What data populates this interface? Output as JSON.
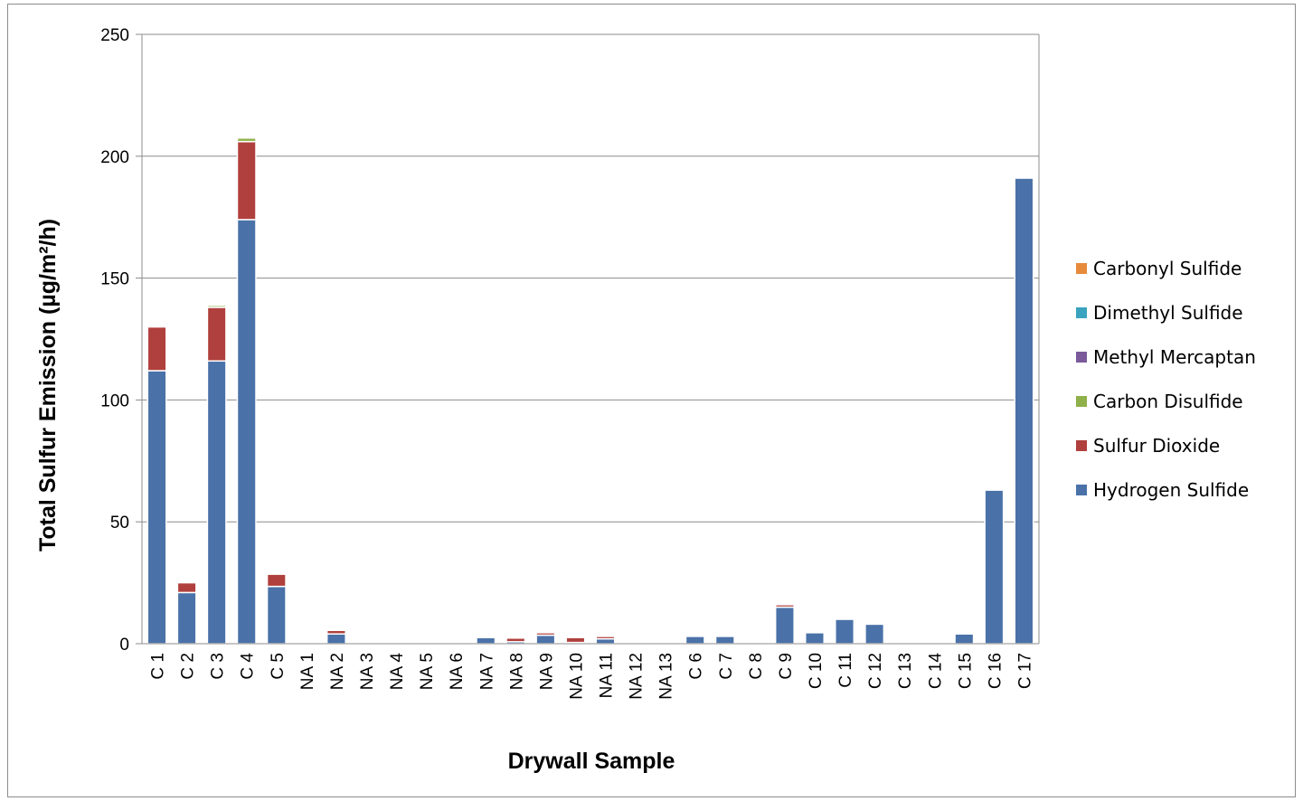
{
  "chart_data": {
    "type": "bar",
    "stacked": true,
    "title": "",
    "xlabel": "Drywall Sample",
    "ylabel": "Total Sulfur Emission (µg/m²/h)",
    "ylim": [
      0,
      250
    ],
    "yticks": [
      "0",
      "50",
      "100",
      "150",
      "200",
      "250"
    ],
    "grid": true,
    "legend_position": "right",
    "categories": [
      "C 1",
      "C 2",
      "C 3",
      "C 4",
      "C 5",
      "NA 1",
      "NA 2",
      "NA 3",
      "NA 4",
      "NA 5",
      "NA 6",
      "NA 7",
      "NA 8",
      "NA 9",
      "NA 10",
      "NA 11",
      "NA 12",
      "NA 13",
      "C 6",
      "C 7",
      "C 8",
      "C 9",
      "C 10",
      "C 11",
      "C 12",
      "C 13",
      "C 14",
      "C 15",
      "C 16",
      "C 17"
    ],
    "series": [
      {
        "name": "Hydrogen Sulfide",
        "color": "#4a72a8",
        "values": [
          112,
          21,
          116,
          174,
          23.5,
          0,
          4,
          0.3,
          0,
          0.3,
          0,
          2.5,
          0.8,
          3.5,
          0.5,
          2,
          0.3,
          0,
          3,
          3,
          0,
          15,
          4.5,
          10,
          8,
          0,
          0.5,
          4,
          63,
          191
        ]
      },
      {
        "name": "Sulfur Dioxide",
        "color": "#b0403d",
        "values": [
          18,
          4,
          22,
          32,
          5,
          0,
          1.5,
          0,
          0,
          0.3,
          0,
          0,
          1.5,
          1,
          2,
          1,
          0,
          0,
          0,
          0,
          0,
          1,
          0,
          0,
          0,
          0,
          0,
          0,
          0,
          0
        ]
      },
      {
        "name": "Carbon Disulfide",
        "color": "#8fb04a",
        "values": [
          0.3,
          0,
          0.8,
          1.5,
          0,
          0,
          0.3,
          0,
          0,
          0,
          0,
          0,
          0,
          0,
          0,
          0,
          0,
          0,
          0,
          0,
          0,
          0,
          0,
          0,
          0,
          0,
          0,
          0,
          0,
          0
        ]
      },
      {
        "name": "Methyl Mercaptan",
        "color": "#7a5a9a",
        "values": [
          0,
          0,
          0.3,
          0.5,
          0,
          0,
          0,
          0,
          0,
          0,
          0,
          0,
          0,
          0,
          0,
          0,
          0,
          0,
          0,
          0,
          0,
          0,
          0,
          0,
          0,
          0,
          0,
          0,
          0,
          0
        ]
      },
      {
        "name": "Dimethyl Sulfide",
        "color": "#3aa3bf",
        "values": [
          0,
          0,
          0,
          0,
          0,
          0,
          0,
          0,
          0,
          0,
          0,
          0,
          0,
          0,
          0,
          0,
          0,
          0,
          0,
          0,
          0,
          0,
          0,
          0,
          0,
          0,
          0,
          0,
          0,
          0
        ]
      },
      {
        "name": "Carbonyl Sulfide",
        "color": "#e88a3c",
        "values": [
          0,
          0,
          0.3,
          0.3,
          0,
          0,
          0,
          0,
          0,
          0,
          0,
          0,
          0,
          0,
          0,
          0,
          0,
          0,
          0,
          0,
          0,
          0,
          0,
          0,
          0,
          0,
          0,
          0,
          0,
          0
        ]
      }
    ],
    "legend_order": [
      "Carbonyl Sulfide",
      "Dimethyl Sulfide",
      "Methyl Mercaptan",
      "Carbon Disulfide",
      "Sulfur Dioxide",
      "Hydrogen Sulfide"
    ]
  }
}
